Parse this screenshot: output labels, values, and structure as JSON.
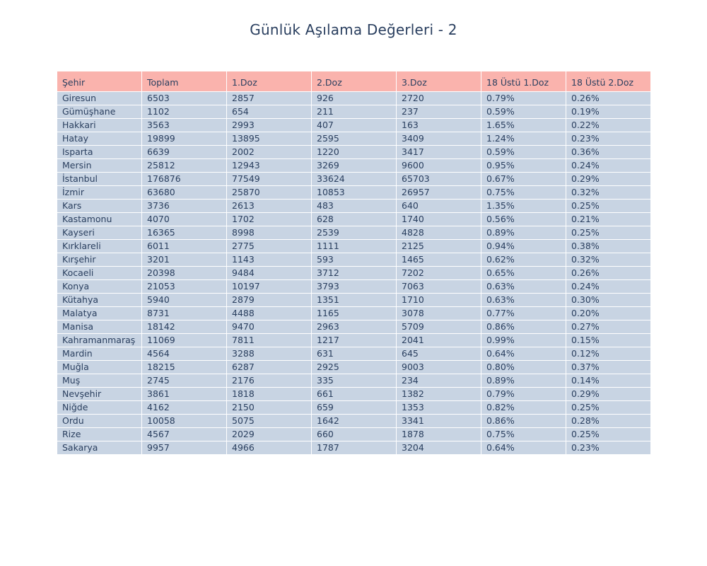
{
  "chart_data": {
    "type": "table",
    "title": "Günlük Aşılama Değerleri - 2",
    "columns": [
      "Şehir",
      "Toplam",
      "1.Doz",
      "2.Doz",
      "3.Doz",
      "18 Üstü 1.Doz",
      "18 Üstü 2.Doz"
    ],
    "rows": [
      [
        "Giresun",
        "6503",
        "2857",
        "926",
        "2720",
        "0.79%",
        "0.26%"
      ],
      [
        "Gümüşhane",
        "1102",
        "654",
        "211",
        "237",
        "0.59%",
        "0.19%"
      ],
      [
        "Hakkari",
        "3563",
        "2993",
        "407",
        "163",
        "1.65%",
        "0.22%"
      ],
      [
        "Hatay",
        "19899",
        "13895",
        "2595",
        "3409",
        "1.24%",
        "0.23%"
      ],
      [
        "Isparta",
        "6639",
        "2002",
        "1220",
        "3417",
        "0.59%",
        "0.36%"
      ],
      [
        "Mersin",
        "25812",
        "12943",
        "3269",
        "9600",
        "0.95%",
        "0.24%"
      ],
      [
        "İstanbul",
        "176876",
        "77549",
        "33624",
        "65703",
        "0.67%",
        "0.29%"
      ],
      [
        "İzmir",
        "63680",
        "25870",
        "10853",
        "26957",
        "0.75%",
        "0.32%"
      ],
      [
        "Kars",
        "3736",
        "2613",
        "483",
        "640",
        "1.35%",
        "0.25%"
      ],
      [
        "Kastamonu",
        "4070",
        "1702",
        "628",
        "1740",
        "0.56%",
        "0.21%"
      ],
      [
        "Kayseri",
        "16365",
        "8998",
        "2539",
        "4828",
        "0.89%",
        "0.25%"
      ],
      [
        "Kırklareli",
        "6011",
        "2775",
        "1111",
        "2125",
        "0.94%",
        "0.38%"
      ],
      [
        "Kırşehir",
        "3201",
        "1143",
        "593",
        "1465",
        "0.62%",
        "0.32%"
      ],
      [
        "Kocaeli",
        "20398",
        "9484",
        "3712",
        "7202",
        "0.65%",
        "0.26%"
      ],
      [
        "Konya",
        "21053",
        "10197",
        "3793",
        "7063",
        "0.63%",
        "0.24%"
      ],
      [
        "Kütahya",
        "5940",
        "2879",
        "1351",
        "1710",
        "0.63%",
        "0.30%"
      ],
      [
        "Malatya",
        "8731",
        "4488",
        "1165",
        "3078",
        "0.77%",
        "0.20%"
      ],
      [
        "Manisa",
        "18142",
        "9470",
        "2963",
        "5709",
        "0.86%",
        "0.27%"
      ],
      [
        "Kahramanmaraş",
        "11069",
        "7811",
        "1217",
        "2041",
        "0.99%",
        "0.15%"
      ],
      [
        "Mardin",
        "4564",
        "3288",
        "631",
        "645",
        "0.64%",
        "0.12%"
      ],
      [
        "Muğla",
        "18215",
        "6287",
        "2925",
        "9003",
        "0.80%",
        "0.37%"
      ],
      [
        "Muş",
        "2745",
        "2176",
        "335",
        "234",
        "0.89%",
        "0.14%"
      ],
      [
        "Nevşehir",
        "3861",
        "1818",
        "661",
        "1382",
        "0.79%",
        "0.29%"
      ],
      [
        "Niğde",
        "4162",
        "2150",
        "659",
        "1353",
        "0.82%",
        "0.25%"
      ],
      [
        "Ordu",
        "10058",
        "5075",
        "1642",
        "3341",
        "0.86%",
        "0.28%"
      ],
      [
        "Rize",
        "4567",
        "2029",
        "660",
        "1878",
        "0.75%",
        "0.25%"
      ],
      [
        "Sakarya",
        "9957",
        "4966",
        "1787",
        "3204",
        "0.64%",
        "0.23%"
      ]
    ],
    "colors": {
      "header_fill": "#fab3ad",
      "cell_fill": "#c8d4e3",
      "text": "#2a3f5f"
    }
  }
}
